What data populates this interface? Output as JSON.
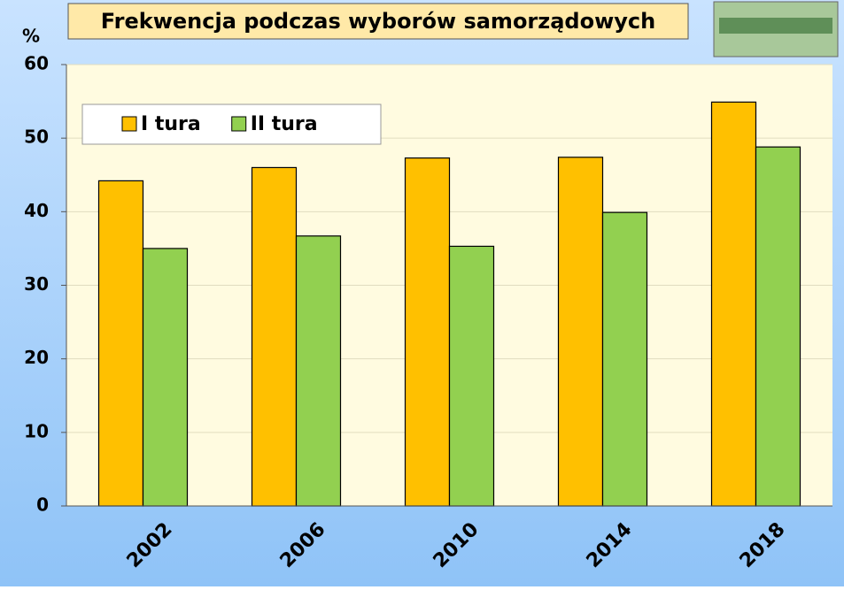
{
  "chart_data": {
    "type": "bar",
    "title": "Frekwencja podczas wyborów samorządowych",
    "y_label": "%",
    "categories": [
      "2002",
      "2006",
      "2010",
      "2014",
      "2018"
    ],
    "series": [
      {
        "name": "I tura",
        "color": "#ffc000",
        "values": [
          44.2,
          46.0,
          47.3,
          47.4,
          54.9
        ]
      },
      {
        "name": "II tura",
        "color": "#92d050",
        "values": [
          35.0,
          36.7,
          35.3,
          39.9,
          48.8
        ]
      }
    ],
    "ylim": [
      0,
      60
    ],
    "yticks": [
      0,
      10,
      20,
      30,
      40,
      50,
      60
    ],
    "grid": true,
    "legend": "upper-left"
  }
}
